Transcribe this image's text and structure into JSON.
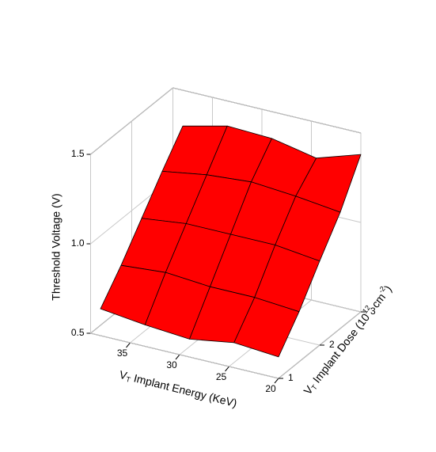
{
  "chart_data": {
    "type": "surface",
    "x_label": [
      "V",
      "T",
      " Implant Energy (KeV)"
    ],
    "y_label": [
      "V",
      "T",
      " Implant Dose (10",
      "12",
      " cm",
      "-2",
      ")"
    ],
    "z_label": "Threshold Voltage (V)",
    "x": [
      20,
      24.5,
      29,
      33.5,
      38
    ],
    "y": [
      1,
      1.5,
      2,
      2.5,
      3
    ],
    "z": [
      [
        0.62,
        0.64,
        0.6,
        0.62,
        0.65
      ],
      [
        0.78,
        0.8,
        0.8,
        0.82,
        0.8
      ],
      [
        0.97,
        1.0,
        1.0,
        1.0,
        0.97
      ],
      [
        1.15,
        1.18,
        1.2,
        1.18,
        1.14
      ],
      [
        1.38,
        1.3,
        1.35,
        1.36,
        1.3
      ]
    ],
    "color": "#ff0000",
    "xlim": [
      20,
      39
    ],
    "ylim": [
      1,
      3
    ],
    "zlim": [
      0.5,
      1.5
    ],
    "xticks": [
      20,
      25,
      30,
      35
    ],
    "yticks": [
      1,
      2,
      3
    ],
    "zticks": [
      0.5,
      {
        "value": 1.0,
        "label": "1.0"
      },
      1.5
    ],
    "grid": true
  }
}
